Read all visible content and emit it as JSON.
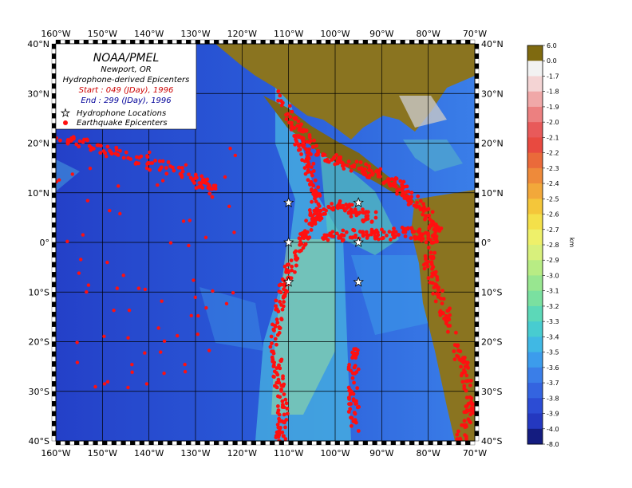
{
  "legend": {
    "title": "NOAA/PMEL",
    "location": "Newport, OR",
    "subtitle": "Hydrophone-derived Epicenters",
    "start": "Start : 049 (JDay), 1996",
    "end": "End : 299 (JDay), 1996",
    "hydrophone_label": "Hydrophone Locations",
    "epicenter_label": "Earthquake Epicenters",
    "start_color": "#cc0000",
    "end_color": "#000099"
  },
  "axes": {
    "lon_labels": [
      "160°W",
      "150°W",
      "140°W",
      "130°W",
      "120°W",
      "110°W",
      "100°W",
      "90°W",
      "80°W",
      "70°W"
    ],
    "lat_labels": [
      "40°N",
      "30°N",
      "20°N",
      "10°N",
      "0°",
      "10°S",
      "20°S",
      "30°S",
      "40°S"
    ]
  },
  "colorbar": {
    "unit": "km",
    "labels": [
      "6.0",
      "0.0",
      "-1.7",
      "-1.8",
      "-1.9",
      "-2.0",
      "-2.1",
      "-2.2",
      "-2.3",
      "-2.4",
      "-2.5",
      "-2.6",
      "-2.7",
      "-2.8",
      "-2.9",
      "-3.0",
      "-3.1",
      "-3.2",
      "-3.3",
      "-3.4",
      "-3.5",
      "-3.6",
      "-3.7",
      "-3.8",
      "-3.9",
      "-4.0",
      "-8.0"
    ],
    "colors": [
      "#7f6a10",
      "#f2f2f2",
      "#f4d4d4",
      "#f0a8a8",
      "#ec8080",
      "#e85a5a",
      "#e84a40",
      "#ea6a3a",
      "#ee8a3a",
      "#f2a83a",
      "#f4c63a",
      "#f4e04a",
      "#eef06a",
      "#d8f07c",
      "#b8ec84",
      "#98e690",
      "#7ae0a0",
      "#5cd8b8",
      "#48ccd0",
      "#40b8e4",
      "#3c9cec",
      "#3a7ee8",
      "#3464e0",
      "#2c4cd4",
      "#2438c0",
      "#141c80"
    ]
  },
  "hydrophones": [
    {
      "lon": -110,
      "lat": 8
    },
    {
      "lon": -95,
      "lat": 8
    },
    {
      "lon": -110,
      "lat": 0
    },
    {
      "lon": -95,
      "lat": 0
    },
    {
      "lon": -110,
      "lat": -8
    },
    {
      "lon": -95,
      "lat": -8
    }
  ]
}
